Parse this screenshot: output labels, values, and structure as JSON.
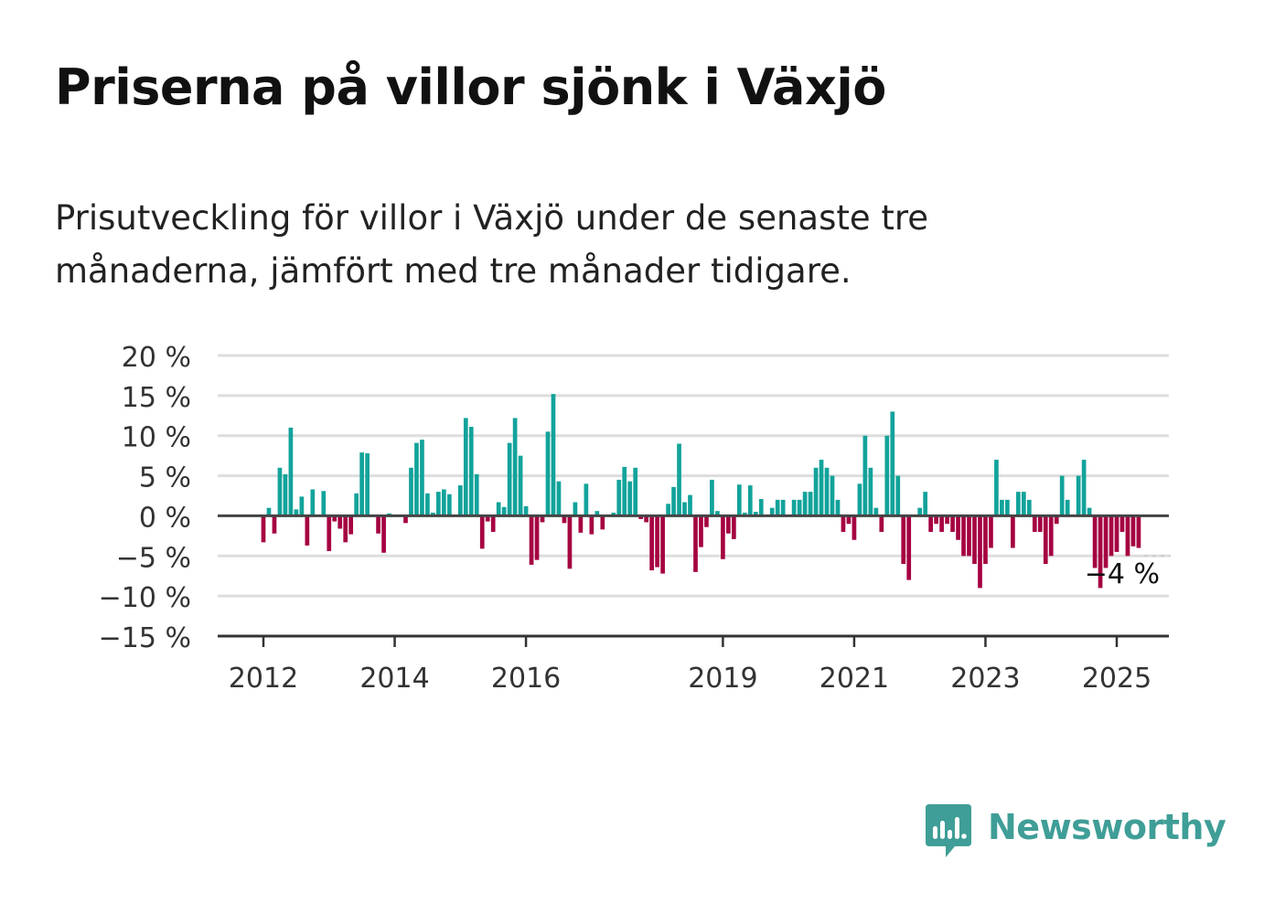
{
  "title": "Priserna på villor sjönk i Växjö",
  "subtitle": "Prisutveckling för villor i Växjö under de senaste tre månaderna, jämfört med tre månader tidigare.",
  "logo": {
    "name": "Newsworthy",
    "icon": "bar-chart-speech-bubble-icon",
    "color": "#3f9e97"
  },
  "colors": {
    "positive": "#12a39b",
    "negative": "#a50041",
    "grid": "#dddddd",
    "axis": "#333333"
  },
  "chart_data": {
    "type": "bar",
    "title": "",
    "xlabel": "",
    "ylabel": "",
    "ylim": [
      -15,
      20
    ],
    "yticks": [
      20,
      15,
      10,
      5,
      0,
      -5,
      -10,
      -15
    ],
    "ytick_labels": [
      "20 %",
      "15 %",
      "10 %",
      "5 %",
      "0 %",
      "−5 %",
      "−10 %",
      "−15 %"
    ],
    "xticks": [
      "2012",
      "2014",
      "2016",
      "2019",
      "2021",
      "2023",
      "2025"
    ],
    "xtick_dates": [
      "2012-01",
      "2014-01",
      "2016-01",
      "2019-01",
      "2021-01",
      "2023-01",
      "2025-01"
    ],
    "grid": true,
    "annotation": {
      "date": "2025-05",
      "value": -4,
      "text": "−4 %"
    },
    "series": [
      {
        "x": [
          "2012-01",
          "2012-02",
          "2012-03",
          "2012-04",
          "2012-05",
          "2012-06",
          "2012-07",
          "2012-08",
          "2012-09",
          "2012-10",
          "2012-11",
          "2012-12",
          "2013-01",
          "2013-02",
          "2013-03",
          "2013-04",
          "2013-05",
          "2013-06",
          "2013-07",
          "2013-08",
          "2013-09",
          "2013-10",
          "2013-11",
          "2013-12",
          "2014-01",
          "2014-02",
          "2014-03",
          "2014-04",
          "2014-05",
          "2014-06",
          "2014-07",
          "2014-08",
          "2014-09",
          "2014-10",
          "2014-11",
          "2014-12",
          "2015-01",
          "2015-02",
          "2015-03",
          "2015-04",
          "2015-05",
          "2015-06",
          "2015-07",
          "2015-08",
          "2015-09",
          "2015-10",
          "2015-11",
          "2015-12",
          "2016-01",
          "2016-02",
          "2016-03",
          "2016-04",
          "2016-05",
          "2016-06",
          "2016-07",
          "2016-08",
          "2016-09",
          "2016-10",
          "2016-11",
          "2016-12",
          "2017-01",
          "2017-02",
          "2017-03",
          "2017-04",
          "2017-05",
          "2017-06",
          "2017-07",
          "2017-08",
          "2017-09",
          "2017-10",
          "2017-11",
          "2017-12",
          "2018-01",
          "2018-02",
          "2018-03",
          "2018-04",
          "2018-05",
          "2018-06",
          "2018-07",
          "2018-08",
          "2018-09",
          "2018-10",
          "2018-11",
          "2018-12",
          "2019-01",
          "2019-02",
          "2019-03",
          "2019-04",
          "2019-05",
          "2019-06",
          "2019-07",
          "2019-08",
          "2019-09",
          "2019-10",
          "2019-11",
          "2019-12",
          "2020-01",
          "2020-02",
          "2020-03",
          "2020-04",
          "2020-05",
          "2020-06",
          "2020-07",
          "2020-08",
          "2020-09",
          "2020-10",
          "2020-11",
          "2020-12",
          "2021-01",
          "2021-02",
          "2021-03",
          "2021-04",
          "2021-05",
          "2021-06",
          "2021-07",
          "2021-08",
          "2021-09",
          "2021-10",
          "2021-11",
          "2021-12",
          "2022-01",
          "2022-02",
          "2022-03",
          "2022-04",
          "2022-05",
          "2022-06",
          "2022-07",
          "2022-08",
          "2022-09",
          "2022-10",
          "2022-11",
          "2022-12",
          "2023-01",
          "2023-02",
          "2023-03",
          "2023-04",
          "2023-05",
          "2023-06",
          "2023-07",
          "2023-08",
          "2023-09",
          "2023-10",
          "2023-11",
          "2023-12",
          "2024-01",
          "2024-02",
          "2024-03",
          "2024-04",
          "2024-05",
          "2024-06",
          "2024-07",
          "2024-08",
          "2024-09",
          "2024-10",
          "2024-11",
          "2024-12",
          "2025-01",
          "2025-02",
          "2025-03",
          "2025-04",
          "2025-05"
        ],
        "values": [
          -3.3,
          1.0,
          -2.2,
          6.0,
          5.2,
          11.0,
          0.8,
          2.4,
          -3.7,
          3.3,
          0,
          3.1,
          -4.4,
          -0.7,
          -1.6,
          -3.3,
          -2.3,
          2.8,
          7.9,
          7.8,
          0,
          -2.2,
          -4.6,
          0.3,
          0,
          0,
          -0.9,
          6.0,
          9.1,
          9.5,
          2.8,
          0.4,
          3.0,
          3.3,
          2.7,
          0,
          3.8,
          12.2,
          11.1,
          5.2,
          -4.1,
          -0.7,
          -2.0,
          1.7,
          1.1,
          9.1,
          12.2,
          7.5,
          1.2,
          -6.1,
          -5.5,
          -0.8,
          10.5,
          15.2,
          4.3,
          -0.9,
          -6.6,
          1.7,
          -2.1,
          4.0,
          -2.3,
          0.6,
          -1.7,
          0,
          0.4,
          4.5,
          6.1,
          4.3,
          6.0,
          -0.4,
          -0.8,
          -6.8,
          -6.4,
          -7.2,
          1.5,
          3.6,
          9.0,
          1.7,
          2.6,
          -7.0,
          -3.9,
          -1.4,
          4.5,
          0.6,
          -5.4,
          -2.2,
          -2.9,
          3.9,
          0.4,
          3.8,
          0.5,
          2.1,
          0,
          1.0,
          2.0,
          2.0,
          0,
          2.0,
          2.0,
          3.0,
          3.0,
          6.0,
          7.0,
          6.0,
          5.0,
          2.0,
          -2.0,
          -1.0,
          -3.0,
          4.0,
          10.0,
          6.0,
          1.0,
          -2.0,
          10.0,
          13.0,
          5.0,
          -6.0,
          -8.0,
          0,
          1.0,
          3.0,
          -2.0,
          -1.0,
          -2.0,
          -1.0,
          -2.0,
          -3.0,
          -5.0,
          -5.0,
          -6.0,
          -9.0,
          -6.0,
          -4.0,
          7.0,
          2.0,
          2.0,
          -4.0,
          3.0,
          3.0,
          2.0,
          -2.0,
          -2.0,
          -6.0,
          -5.0,
          -1.0,
          5.0,
          2.0,
          0,
          5.0,
          7.0,
          1.0,
          -6.5,
          -9.0,
          -6.5,
          -5.0,
          -4.5,
          -2.0,
          -5.0,
          -3.8,
          -4.0
        ]
      }
    ]
  }
}
